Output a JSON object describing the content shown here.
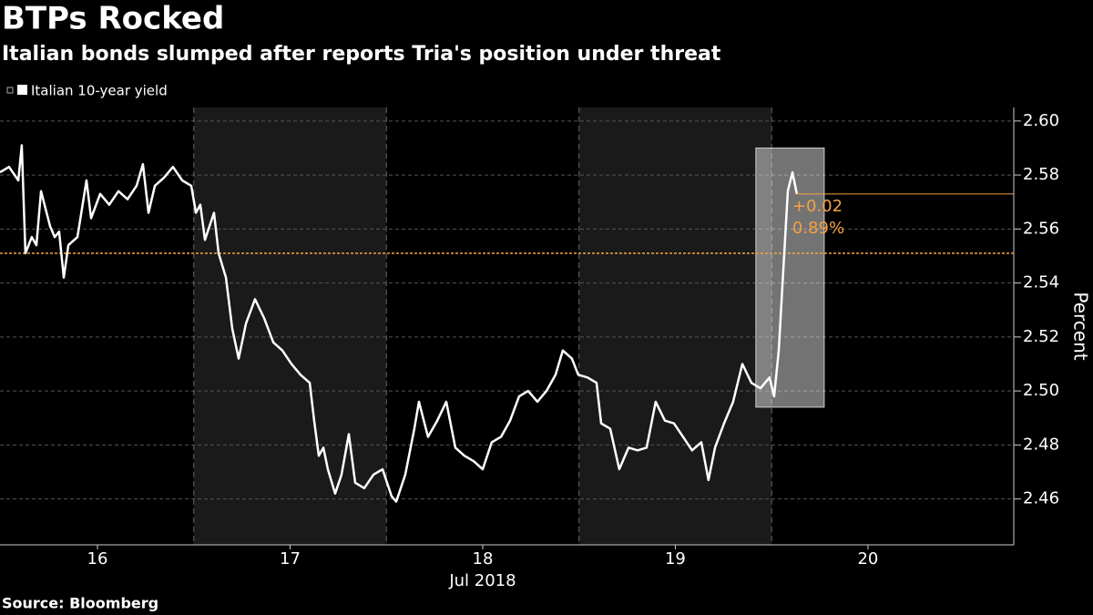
{
  "chart_data": {
    "type": "line",
    "title": "BTPs Rocked",
    "subtitle": "Italian bonds slumped after reports Tria's position under threat",
    "source": "Source: Bloomberg",
    "xlabel": "Jul 2018",
    "ylabel": "Percent",
    "xlim": [
      15.494,
      20.757
    ],
    "xticks": [
      16,
      17,
      18,
      19,
      20
    ],
    "ylim": [
      2.443,
      2.605
    ],
    "yticks": [
      2.46,
      2.48,
      {
        "value": 2.5,
        "label": "2.50"
      },
      2.52,
      2.54,
      2.56,
      2.58,
      {
        "value": 2.6,
        "label": "2.60"
      }
    ],
    "grid": true,
    "reference_line": 2.551,
    "highlight": {
      "x": [
        19.418,
        19.773
      ],
      "y": [
        2.494,
        2.59
      ]
    },
    "annotations": [
      "+0.02",
      "0.89%"
    ],
    "annotation_color": "#f5a142",
    "series": [
      {
        "name": "Italian 10-year yield",
        "color": "#ffffff",
        "x": [
          15.494,
          15.541,
          15.589,
          15.607,
          15.626,
          15.659,
          15.683,
          15.707,
          15.754,
          15.778,
          15.801,
          15.825,
          15.849,
          15.896,
          15.943,
          15.967,
          16.014,
          16.061,
          16.109,
          16.156,
          16.203,
          16.236,
          16.265,
          16.298,
          16.345,
          16.392,
          16.44,
          16.487,
          16.511,
          16.534,
          16.558,
          16.605,
          16.629,
          16.667,
          16.7,
          16.733,
          16.771,
          16.818,
          16.865,
          16.913,
          16.96,
          17.007,
          17.054,
          17.102,
          17.125,
          17.149,
          17.173,
          17.196,
          17.234,
          17.267,
          17.305,
          17.338,
          17.385,
          17.433,
          17.48,
          17.527,
          17.551,
          17.598,
          17.645,
          17.669,
          17.716,
          17.764,
          17.811,
          17.858,
          17.905,
          17.953,
          18.0,
          18.047,
          18.095,
          18.142,
          18.189,
          18.236,
          18.284,
          18.331,
          18.378,
          18.416,
          18.463,
          18.496,
          18.544,
          18.591,
          18.615,
          18.662,
          18.709,
          18.757,
          18.804,
          18.851,
          18.898,
          18.946,
          18.993,
          19.04,
          19.087,
          19.135,
          19.172,
          19.206,
          19.253,
          19.3,
          19.348,
          19.395,
          19.442,
          19.489,
          19.513,
          19.537,
          19.56,
          19.584,
          19.608,
          19.631
        ],
        "values": [
          2.581,
          2.583,
          2.578,
          2.591,
          2.551,
          2.557,
          2.554,
          2.574,
          2.561,
          2.557,
          2.559,
          2.542,
          2.554,
          2.557,
          2.578,
          2.564,
          2.573,
          2.569,
          2.574,
          2.571,
          2.576,
          2.584,
          2.566,
          2.576,
          2.579,
          2.583,
          2.578,
          2.576,
          2.566,
          2.569,
          2.556,
          2.566,
          2.551,
          2.542,
          2.523,
          2.512,
          2.525,
          2.534,
          2.527,
          2.518,
          2.515,
          2.51,
          2.506,
          2.503,
          2.489,
          2.476,
          2.479,
          2.471,
          2.462,
          2.469,
          2.484,
          2.466,
          2.464,
          2.469,
          2.471,
          2.461,
          2.459,
          2.469,
          2.486,
          2.496,
          2.483,
          2.489,
          2.496,
          2.479,
          2.476,
          2.474,
          2.471,
          2.481,
          2.483,
          2.489,
          2.498,
          2.5,
          2.496,
          2.5,
          2.506,
          2.515,
          2.512,
          2.506,
          2.505,
          2.503,
          2.488,
          2.486,
          2.471,
          2.479,
          2.478,
          2.479,
          2.496,
          2.489,
          2.488,
          2.483,
          2.478,
          2.481,
          2.467,
          2.479,
          2.488,
          2.496,
          2.51,
          2.503,
          2.501,
          2.505,
          2.498,
          2.515,
          2.544,
          2.574,
          2.581,
          2.573
        ]
      }
    ]
  }
}
